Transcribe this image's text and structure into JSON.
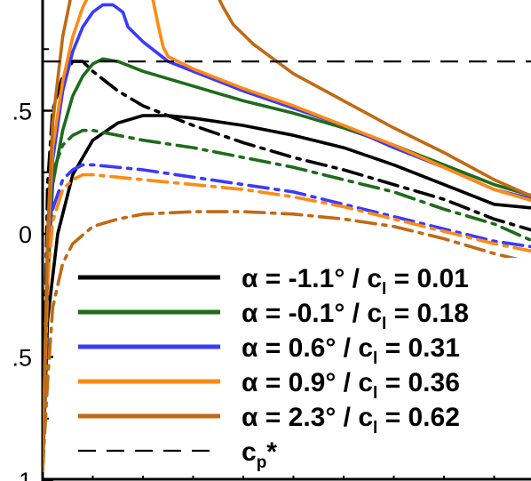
{
  "chart_data": {
    "type": "line",
    "title": "",
    "xlabel": "",
    "ylabel": "",
    "ylim": [
      -1,
      0.95
    ],
    "yticks": [
      {
        "value": 0.5,
        "label": ".5"
      },
      {
        "value": 0,
        "label": "0"
      },
      {
        "value": -0.5,
        "label": ".5"
      },
      {
        "value": -1,
        "label": "1"
      }
    ],
    "reference_line": {
      "name": "cp*",
      "value": 0.7
    },
    "legend": {
      "placement": "bottom-right",
      "entries": [
        {
          "alpha": "α = -1.1° / c",
          "sub": "l",
          "cl": " = 0.01",
          "color": "#000000",
          "dash": "solid"
        },
        {
          "alpha": "α = -0.1° / c",
          "sub": "l",
          "cl": " = 0.18",
          "color": "#1e6b1a",
          "dash": "solid"
        },
        {
          "alpha": "α = 0.6° / c",
          "sub": "l",
          "cl": " = 0.31",
          "color": "#3a3aff",
          "dash": "solid"
        },
        {
          "alpha": "α = 0.9° / c",
          "sub": "l",
          "cl": " = 0.36",
          "color": "#ff8a14",
          "dash": "solid"
        },
        {
          "alpha": "α = 2.3° / c",
          "sub": "l",
          "cl": " = 0.62",
          "color": "#c06a14",
          "dash": "solid"
        },
        {
          "alpha": "c",
          "sub": "p",
          "cl": "*",
          "color": "#000000",
          "dash": "dashed"
        }
      ]
    },
    "series": [
      {
        "color": "#000000",
        "style": "solid",
        "points": [
          [
            0.0,
            -0.96
          ],
          [
            0.01,
            -0.35
          ],
          [
            0.03,
            0.0
          ],
          [
            0.06,
            0.24
          ],
          [
            0.1,
            0.38
          ],
          [
            0.15,
            0.45
          ],
          [
            0.2,
            0.48
          ],
          [
            0.25,
            0.48
          ],
          [
            0.3,
            0.47
          ],
          [
            0.4,
            0.44
          ],
          [
            0.5,
            0.4
          ],
          [
            0.6,
            0.35
          ],
          [
            0.7,
            0.28
          ],
          [
            0.8,
            0.2
          ],
          [
            0.9,
            0.12
          ],
          [
            1.0,
            0.1
          ]
        ]
      },
      {
        "color": "#000000",
        "style": "dashdot",
        "points": [
          [
            0.0,
            -0.96
          ],
          [
            0.01,
            0.2
          ],
          [
            0.02,
            0.5
          ],
          [
            0.04,
            0.64
          ],
          [
            0.06,
            0.7
          ],
          [
            0.08,
            0.7
          ],
          [
            0.1,
            0.66
          ],
          [
            0.15,
            0.58
          ],
          [
            0.2,
            0.52
          ],
          [
            0.3,
            0.44
          ],
          [
            0.4,
            0.37
          ],
          [
            0.5,
            0.31
          ],
          [
            0.6,
            0.26
          ],
          [
            0.7,
            0.2
          ],
          [
            0.8,
            0.14
          ],
          [
            0.9,
            0.06
          ],
          [
            1.0,
            0.0
          ]
        ]
      },
      {
        "color": "#1e6b1a",
        "style": "solid",
        "points": [
          [
            0.0,
            -0.96
          ],
          [
            0.01,
            -0.2
          ],
          [
            0.02,
            0.2
          ],
          [
            0.04,
            0.42
          ],
          [
            0.06,
            0.56
          ],
          [
            0.08,
            0.64
          ],
          [
            0.1,
            0.69
          ],
          [
            0.12,
            0.71
          ],
          [
            0.15,
            0.7
          ],
          [
            0.2,
            0.66
          ],
          [
            0.3,
            0.6
          ],
          [
            0.4,
            0.54
          ],
          [
            0.5,
            0.49
          ],
          [
            0.6,
            0.43
          ],
          [
            0.7,
            0.36
          ],
          [
            0.8,
            0.28
          ],
          [
            0.9,
            0.2
          ],
          [
            1.0,
            0.14
          ]
        ]
      },
      {
        "color": "#1e6b1a",
        "style": "dashdot",
        "points": [
          [
            0.0,
            -0.96
          ],
          [
            0.01,
            0.0
          ],
          [
            0.02,
            0.25
          ],
          [
            0.04,
            0.36
          ],
          [
            0.06,
            0.4
          ],
          [
            0.08,
            0.42
          ],
          [
            0.1,
            0.42
          ],
          [
            0.15,
            0.4
          ],
          [
            0.2,
            0.38
          ],
          [
            0.3,
            0.35
          ],
          [
            0.4,
            0.31
          ],
          [
            0.5,
            0.27
          ],
          [
            0.6,
            0.22
          ],
          [
            0.7,
            0.17
          ],
          [
            0.8,
            0.1
          ],
          [
            0.9,
            0.04
          ],
          [
            1.0,
            -0.05
          ]
        ]
      },
      {
        "color": "#3a3aff",
        "style": "solid",
        "points": [
          [
            0.0,
            -0.96
          ],
          [
            0.01,
            -0.1
          ],
          [
            0.02,
            0.3
          ],
          [
            0.04,
            0.58
          ],
          [
            0.06,
            0.74
          ],
          [
            0.08,
            0.84
          ],
          [
            0.1,
            0.9
          ],
          [
            0.12,
            0.93
          ],
          [
            0.14,
            0.93
          ],
          [
            0.16,
            0.9
          ],
          [
            0.17,
            0.84
          ],
          [
            0.2,
            0.78
          ],
          [
            0.25,
            0.7
          ],
          [
            0.3,
            0.66
          ],
          [
            0.4,
            0.58
          ],
          [
            0.5,
            0.51
          ],
          [
            0.6,
            0.44
          ],
          [
            0.7,
            0.35
          ],
          [
            0.8,
            0.27
          ],
          [
            0.9,
            0.18
          ],
          [
            1.0,
            0.13
          ]
        ]
      },
      {
        "color": "#3a3aff",
        "style": "dashdot",
        "points": [
          [
            0.0,
            -0.96
          ],
          [
            0.01,
            -0.1
          ],
          [
            0.02,
            0.1
          ],
          [
            0.04,
            0.22
          ],
          [
            0.06,
            0.26
          ],
          [
            0.08,
            0.28
          ],
          [
            0.1,
            0.28
          ],
          [
            0.15,
            0.27
          ],
          [
            0.2,
            0.26
          ],
          [
            0.3,
            0.23
          ],
          [
            0.4,
            0.2
          ],
          [
            0.5,
            0.17
          ],
          [
            0.6,
            0.12
          ],
          [
            0.7,
            0.07
          ],
          [
            0.8,
            0.02
          ],
          [
            0.9,
            -0.03
          ],
          [
            1.0,
            -0.06
          ]
        ]
      },
      {
        "color": "#ff8a14",
        "style": "solid",
        "points": [
          [
            0.0,
            -0.96
          ],
          [
            0.01,
            -0.05
          ],
          [
            0.02,
            0.35
          ],
          [
            0.04,
            0.62
          ],
          [
            0.06,
            0.8
          ],
          [
            0.08,
            0.92
          ],
          [
            0.1,
            1.0
          ],
          [
            0.2,
            1.0
          ],
          [
            0.22,
            0.95
          ],
          [
            0.23,
            0.85
          ],
          [
            0.24,
            0.76
          ],
          [
            0.25,
            0.72
          ],
          [
            0.3,
            0.67
          ],
          [
            0.4,
            0.59
          ],
          [
            0.5,
            0.52
          ],
          [
            0.6,
            0.44
          ],
          [
            0.7,
            0.36
          ],
          [
            0.8,
            0.27
          ],
          [
            0.9,
            0.18
          ],
          [
            1.0,
            0.12
          ]
        ]
      },
      {
        "color": "#ff8a14",
        "style": "dashdot",
        "points": [
          [
            0.0,
            -0.96
          ],
          [
            0.01,
            -0.2
          ],
          [
            0.02,
            0.05
          ],
          [
            0.04,
            0.18
          ],
          [
            0.06,
            0.22
          ],
          [
            0.08,
            0.24
          ],
          [
            0.1,
            0.24
          ],
          [
            0.15,
            0.23
          ],
          [
            0.2,
            0.22
          ],
          [
            0.3,
            0.2
          ],
          [
            0.4,
            0.18
          ],
          [
            0.5,
            0.15
          ],
          [
            0.6,
            0.11
          ],
          [
            0.7,
            0.06
          ],
          [
            0.8,
            0.01
          ],
          [
            0.9,
            -0.04
          ],
          [
            1.0,
            -0.08
          ]
        ]
      },
      {
        "color": "#c06a14",
        "style": "solid",
        "points": [
          [
            0.0,
            -0.96
          ],
          [
            0.01,
            0.0
          ],
          [
            0.02,
            0.45
          ],
          [
            0.04,
            0.8
          ],
          [
            0.06,
            1.0
          ],
          [
            0.34,
            1.0
          ],
          [
            0.36,
            0.92
          ],
          [
            0.38,
            0.85
          ],
          [
            0.42,
            0.77
          ],
          [
            0.5,
            0.65
          ],
          [
            0.6,
            0.54
          ],
          [
            0.7,
            0.43
          ],
          [
            0.8,
            0.33
          ],
          [
            0.9,
            0.22
          ],
          [
            1.0,
            0.13
          ]
        ]
      },
      {
        "color": "#c06a14",
        "style": "dashdot",
        "points": [
          [
            0.0,
            -0.96
          ],
          [
            0.01,
            -0.6
          ],
          [
            0.02,
            -0.3
          ],
          [
            0.04,
            -0.12
          ],
          [
            0.06,
            -0.04
          ],
          [
            0.1,
            0.03
          ],
          [
            0.15,
            0.06
          ],
          [
            0.2,
            0.08
          ],
          [
            0.3,
            0.09
          ],
          [
            0.4,
            0.09
          ],
          [
            0.5,
            0.08
          ],
          [
            0.6,
            0.06
          ],
          [
            0.7,
            0.03
          ],
          [
            0.8,
            -0.02
          ],
          [
            0.9,
            -0.08
          ],
          [
            1.0,
            -0.13
          ]
        ]
      }
    ]
  }
}
